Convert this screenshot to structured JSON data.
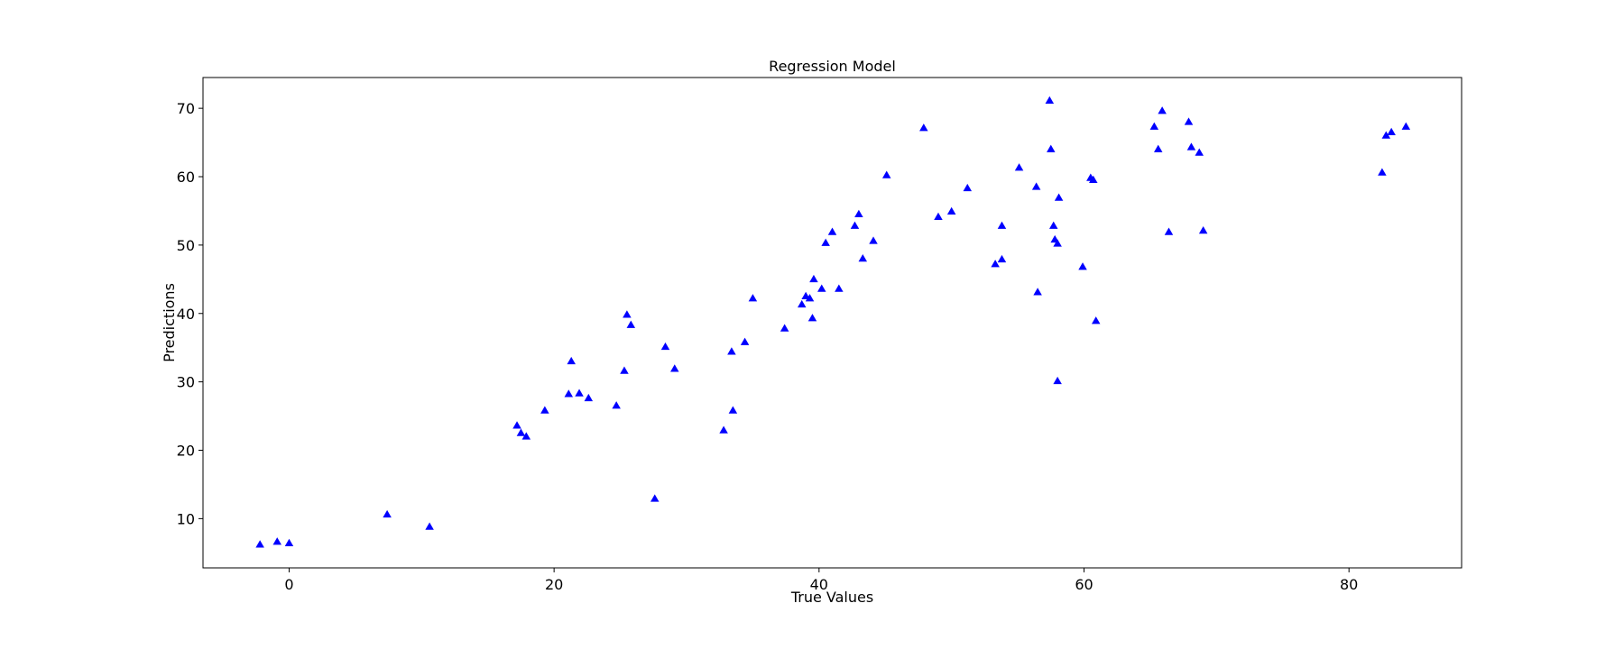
{
  "chart_data": {
    "type": "scatter",
    "title": "Regression Model",
    "xlabel": "True Values",
    "ylabel": "Predictions",
    "xlim": [
      -6.5,
      88.5
    ],
    "ylim": [
      2.8,
      74.5
    ],
    "xticks": [
      0,
      20,
      40,
      60,
      80
    ],
    "yticks": [
      10,
      20,
      30,
      40,
      50,
      60,
      70
    ],
    "grid": false,
    "marker": "triangle-up",
    "colors": {
      "marker": "#0000ff",
      "axes": "#000000",
      "background": "#ffffff"
    },
    "series": [
      {
        "points": [
          [
            -2.2,
            6.2
          ],
          [
            -0.9,
            6.6
          ],
          [
            0.0,
            6.4
          ],
          [
            7.4,
            10.6
          ],
          [
            10.6,
            8.8
          ],
          [
            17.2,
            23.6
          ],
          [
            17.5,
            22.5
          ],
          [
            17.9,
            22.0
          ],
          [
            19.3,
            25.8
          ],
          [
            21.1,
            28.2
          ],
          [
            21.3,
            33.0
          ],
          [
            21.9,
            28.3
          ],
          [
            22.6,
            27.6
          ],
          [
            24.7,
            26.5
          ],
          [
            25.3,
            31.6
          ],
          [
            25.5,
            39.8
          ],
          [
            25.8,
            38.3
          ],
          [
            27.6,
            12.9
          ],
          [
            28.4,
            35.1
          ],
          [
            29.1,
            31.9
          ],
          [
            32.8,
            22.9
          ],
          [
            33.4,
            34.4
          ],
          [
            33.5,
            25.8
          ],
          [
            34.4,
            35.8
          ],
          [
            35.0,
            42.2
          ],
          [
            37.4,
            37.8
          ],
          [
            38.7,
            41.3
          ],
          [
            39.0,
            42.5
          ],
          [
            39.3,
            42.2
          ],
          [
            39.5,
            39.3
          ],
          [
            39.6,
            45.0
          ],
          [
            40.2,
            43.6
          ],
          [
            40.5,
            50.3
          ],
          [
            41.0,
            51.9
          ],
          [
            41.5,
            43.6
          ],
          [
            42.7,
            52.8
          ],
          [
            43.0,
            54.5
          ],
          [
            43.3,
            48.0
          ],
          [
            44.1,
            50.6
          ],
          [
            45.1,
            60.2
          ],
          [
            47.9,
            67.1
          ],
          [
            49.0,
            54.1
          ],
          [
            50.0,
            54.9
          ],
          [
            51.2,
            58.3
          ],
          [
            53.3,
            47.2
          ],
          [
            53.8,
            47.9
          ],
          [
            53.8,
            52.8
          ],
          [
            55.1,
            61.3
          ],
          [
            56.4,
            58.5
          ],
          [
            56.5,
            43.1
          ],
          [
            57.4,
            71.1
          ],
          [
            57.5,
            64.0
          ],
          [
            57.7,
            52.8
          ],
          [
            57.8,
            50.8
          ],
          [
            58.0,
            50.2
          ],
          [
            58.0,
            30.1
          ],
          [
            58.1,
            56.9
          ],
          [
            59.9,
            46.8
          ],
          [
            60.5,
            59.8
          ],
          [
            60.7,
            59.5
          ],
          [
            60.9,
            38.9
          ],
          [
            65.3,
            67.3
          ],
          [
            65.6,
            64.0
          ],
          [
            65.9,
            69.6
          ],
          [
            66.4,
            51.9
          ],
          [
            67.9,
            68.0
          ],
          [
            68.1,
            64.3
          ],
          [
            68.7,
            63.5
          ],
          [
            69.0,
            52.1
          ],
          [
            82.5,
            60.6
          ],
          [
            82.8,
            66.0
          ],
          [
            83.2,
            66.5
          ],
          [
            84.3,
            67.3
          ]
        ]
      }
    ]
  }
}
